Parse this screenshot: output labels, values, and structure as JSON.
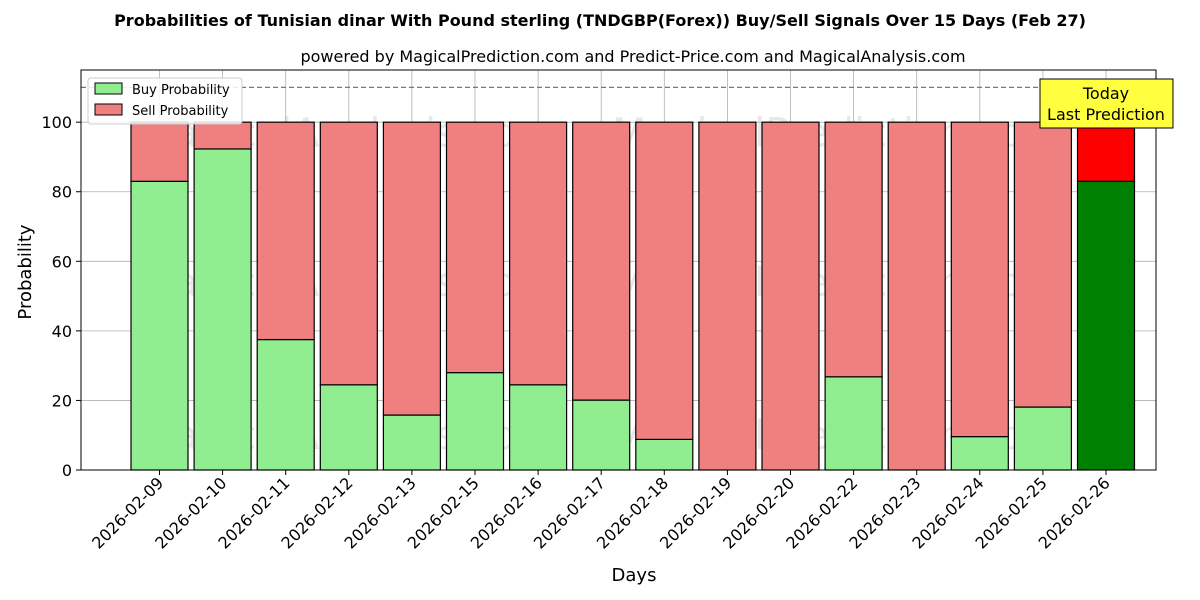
{
  "chart_data": {
    "type": "bar",
    "stacked": true,
    "title": "Probabilities of Tunisian dinar With Pound sterling (TNDGBP(Forex)) Buy/Sell Signals Over 15 Days (Feb 27)",
    "subtitle": "powered by MagicalPrediction.com and Predict-Price.com and MagicalAnalysis.com",
    "xlabel": "Days",
    "ylabel": "Probability",
    "ylim": [
      0,
      115
    ],
    "yticks": [
      0,
      20,
      40,
      60,
      80,
      100
    ],
    "reference_line": 110,
    "grid": true,
    "legend_position": "top-left",
    "categories": [
      "2026-02-09",
      "2026-02-10",
      "2026-02-11",
      "2026-02-12",
      "2026-02-13",
      "2026-02-15",
      "2026-02-16",
      "2026-02-17",
      "2026-02-18",
      "2026-02-19",
      "2026-02-20",
      "2026-02-22",
      "2026-02-23",
      "2026-02-24",
      "2026-02-25",
      "2026-02-26"
    ],
    "series": [
      {
        "name": "Buy Probability",
        "color": "#90ee90",
        "highlight_color": "#008000",
        "values": [
          83,
          92.3,
          37.5,
          24.5,
          15.8,
          28,
          24.5,
          20.1,
          8.8,
          0,
          0,
          26.8,
          0,
          9.6,
          18.1,
          83
        ]
      },
      {
        "name": "Sell Probability",
        "color": "#f08080",
        "highlight_color": "#ff0000",
        "values": [
          17,
          7.7,
          62.5,
          75.5,
          84.2,
          72,
          75.5,
          79.9,
          91.2,
          100,
          100,
          73.2,
          100,
          90.4,
          81.9,
          17
        ]
      }
    ],
    "highlight_index": 15,
    "annotation": {
      "lines": [
        "Today",
        "Last Prediction"
      ],
      "color": "#ffff40"
    },
    "watermarks": [
      "MagicalAnalysis.com",
      "MagicalPrediction.com"
    ]
  }
}
